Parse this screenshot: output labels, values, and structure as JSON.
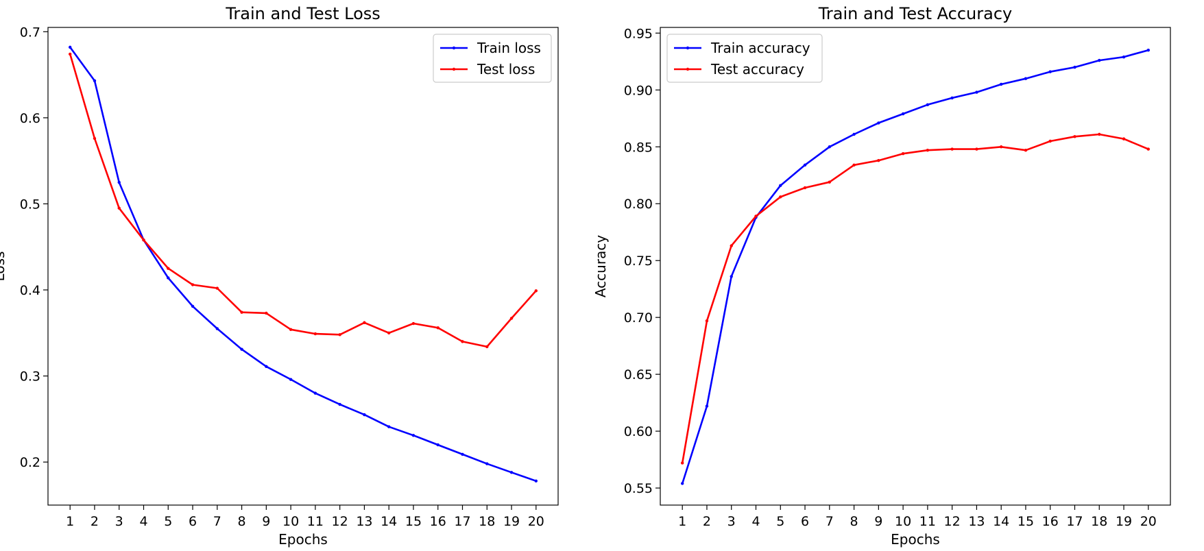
{
  "chart_data": [
    {
      "type": "line",
      "title": "Train and Test Loss",
      "xlabel": "Epochs",
      "ylabel": "Loss",
      "x": [
        1,
        2,
        3,
        4,
        5,
        6,
        7,
        8,
        9,
        10,
        11,
        12,
        13,
        14,
        15,
        16,
        17,
        18,
        19,
        20
      ],
      "xlim": [
        0.1,
        20.9
      ],
      "ylim": [
        0.15,
        0.705
      ],
      "yticks": [
        0.2,
        0.3,
        0.4,
        0.5,
        0.6,
        0.7
      ],
      "ytick_labels": [
        "0.2",
        "0.3",
        "0.4",
        "0.5",
        "0.6",
        "0.7"
      ],
      "grid": false,
      "legend_position": "top-right",
      "series": [
        {
          "name": "Train loss",
          "color": "#0000ff",
          "values": [
            0.682,
            0.643,
            0.525,
            0.458,
            0.414,
            0.381,
            0.355,
            0.331,
            0.311,
            0.296,
            0.28,
            0.267,
            0.255,
            0.241,
            0.231,
            0.22,
            0.209,
            0.198,
            0.188,
            0.178
          ]
        },
        {
          "name": "Test loss",
          "color": "#ff0000",
          "values": [
            0.674,
            0.576,
            0.495,
            0.458,
            0.425,
            0.406,
            0.402,
            0.374,
            0.373,
            0.354,
            0.349,
            0.348,
            0.362,
            0.35,
            0.361,
            0.356,
            0.34,
            0.334,
            0.367,
            0.399
          ]
        }
      ]
    },
    {
      "type": "line",
      "title": "Train and Test Accuracy",
      "xlabel": "Epochs",
      "ylabel": "Accuracy",
      "x": [
        1,
        2,
        3,
        4,
        5,
        6,
        7,
        8,
        9,
        10,
        11,
        12,
        13,
        14,
        15,
        16,
        17,
        18,
        19,
        20
      ],
      "xlim": [
        0.1,
        20.9
      ],
      "ylim": [
        0.535,
        0.955
      ],
      "yticks": [
        0.55,
        0.6,
        0.65,
        0.7,
        0.75,
        0.8,
        0.85,
        0.9,
        0.95
      ],
      "ytick_labels": [
        "0.55",
        "0.60",
        "0.65",
        "0.70",
        "0.75",
        "0.80",
        "0.85",
        "0.90",
        "0.95"
      ],
      "grid": false,
      "legend_position": "top-left",
      "series": [
        {
          "name": "Train accuracy",
          "color": "#0000ff",
          "values": [
            0.554,
            0.622,
            0.736,
            0.788,
            0.816,
            0.834,
            0.85,
            0.861,
            0.871,
            0.879,
            0.887,
            0.893,
            0.898,
            0.905,
            0.91,
            0.916,
            0.92,
            0.926,
            0.929,
            0.935
          ]
        },
        {
          "name": "Test accuracy",
          "color": "#ff0000",
          "values": [
            0.572,
            0.697,
            0.763,
            0.789,
            0.806,
            0.814,
            0.819,
            0.834,
            0.838,
            0.844,
            0.847,
            0.848,
            0.848,
            0.85,
            0.847,
            0.855,
            0.859,
            0.861,
            0.857,
            0.848
          ]
        }
      ]
    }
  ]
}
